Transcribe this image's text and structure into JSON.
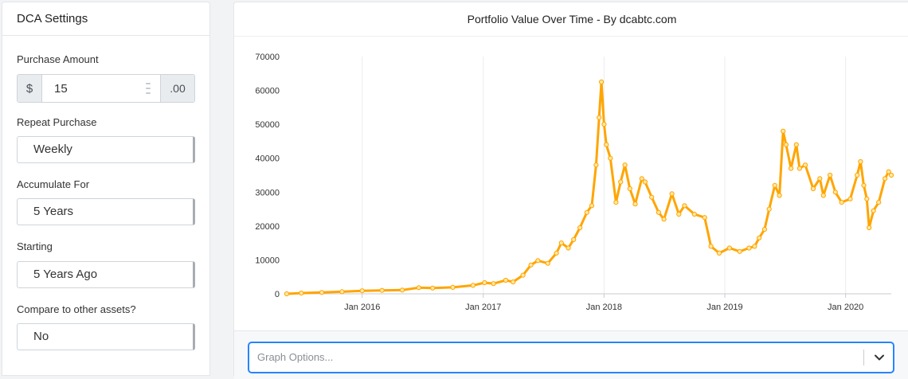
{
  "settings": {
    "title": "DCA Settings",
    "purchase_amount": {
      "label": "Purchase Amount",
      "prefix": "$",
      "value": "15",
      "suffix": ".00"
    },
    "repeat_purchase": {
      "label": "Repeat Purchase",
      "value": "Weekly"
    },
    "accumulate_for": {
      "label": "Accumulate For",
      "value": "5 Years"
    },
    "starting": {
      "label": "Starting",
      "value": "5 Years Ago"
    },
    "compare": {
      "label": "Compare to other assets?",
      "value": "No"
    }
  },
  "graph_options": {
    "placeholder": "Graph Options..."
  },
  "colors": {
    "line": "#ffa500",
    "point_fill": "#ffe8a3"
  },
  "chart_data": {
    "type": "line",
    "title": "Portfolio Value Over Time - By dcabtc.com",
    "xlabel": "",
    "ylabel": "",
    "x_ticks": [
      "Jan 2016",
      "Jan 2017",
      "Jan 2018",
      "Jan 2019",
      "Jan 2020"
    ],
    "y_ticks": [
      "0",
      "10000",
      "20000",
      "30000",
      "40000",
      "50000",
      "60000",
      "70000"
    ],
    "ylim": [
      0,
      70000
    ],
    "xlim": [
      "2015-05-18",
      "2020-05-18"
    ],
    "grid": "vertical",
    "series": [
      {
        "x": [
          "2015-05-18",
          "2015-07-01",
          "2015-09-01",
          "2015-11-01",
          "2016-01-01",
          "2016-03-01",
          "2016-05-01",
          "2016-06-20",
          "2016-08-01",
          "2016-10-01",
          "2016-12-01",
          "2017-01-05",
          "2017-02-01",
          "2017-03-10",
          "2017-04-01",
          "2017-05-01",
          "2017-05-25",
          "2017-06-15",
          "2017-07-15",
          "2017-08-10",
          "2017-08-25",
          "2017-09-15",
          "2017-10-01",
          "2017-10-20",
          "2017-11-10",
          "2017-11-25",
          "2017-12-08",
          "2017-12-17",
          "2017-12-24",
          "2018-01-01",
          "2018-01-08",
          "2018-01-20",
          "2018-02-06",
          "2018-02-20",
          "2018-03-05",
          "2018-03-20",
          "2018-04-05",
          "2018-04-25",
          "2018-05-05",
          "2018-05-25",
          "2018-06-15",
          "2018-07-01",
          "2018-07-25",
          "2018-08-15",
          "2018-09-01",
          "2018-10-01",
          "2018-11-01",
          "2018-11-20",
          "2018-12-15",
          "2019-01-15",
          "2019-02-15",
          "2019-03-15",
          "2019-04-01",
          "2019-04-15",
          "2019-05-01",
          "2019-05-15",
          "2019-06-01",
          "2019-06-15",
          "2019-06-26",
          "2019-07-05",
          "2019-07-20",
          "2019-08-05",
          "2019-08-15",
          "2019-09-01",
          "2019-09-25",
          "2019-10-15",
          "2019-10-26",
          "2019-11-15",
          "2019-12-01",
          "2019-12-20",
          "2020-01-15",
          "2020-02-05",
          "2020-02-15",
          "2020-02-25",
          "2020-03-05",
          "2020-03-12",
          "2020-03-25",
          "2020-04-10",
          "2020-04-29",
          "2020-05-10",
          "2020-05-18"
        ],
        "values": [
          0,
          200,
          400,
          600,
          900,
          1000,
          1100,
          1800,
          1700,
          1900,
          2500,
          3300,
          3000,
          4000,
          3500,
          5500,
          8500,
          9800,
          9000,
          12000,
          15000,
          13500,
          16000,
          19500,
          24000,
          26000,
          38000,
          52000,
          62500,
          50000,
          44000,
          40000,
          27000,
          33000,
          38000,
          31000,
          26500,
          34000,
          33000,
          28500,
          24000,
          22000,
          29500,
          23500,
          26000,
          23500,
          22500,
          14000,
          12000,
          13500,
          12500,
          13500,
          14000,
          16500,
          19000,
          25000,
          32000,
          29000,
          48000,
          44000,
          37000,
          44000,
          37000,
          38000,
          31000,
          34000,
          29000,
          35000,
          30000,
          27000,
          28000,
          35000,
          39000,
          32000,
          28000,
          19500,
          24500,
          27000,
          34000,
          36000,
          35000
        ]
      }
    ]
  }
}
